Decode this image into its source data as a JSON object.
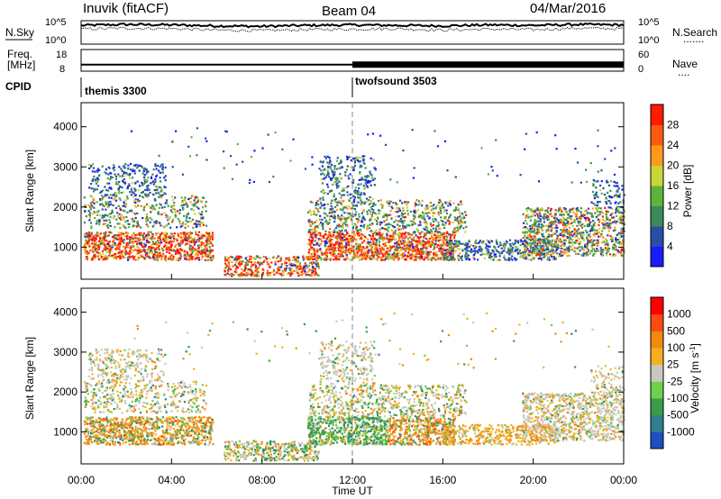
{
  "header": {
    "station": "Inuvik (fitACF)",
    "beam": "Beam 04",
    "date": "04/Mar/2016"
  },
  "chart_data": [
    {
      "type": "line",
      "panel": "noise",
      "ylabel_left": "N.Sky",
      "ylabel_right": "N.Search",
      "legend_sample": ".......",
      "left_ticks": [
        "10^5",
        "10^0"
      ],
      "right_ticks": [
        "10^5",
        "10^0"
      ],
      "y_scale": "log",
      "series": [
        {
          "name": "N.Sky",
          "x": [
            0,
            2,
            4,
            6,
            8,
            10,
            12,
            14,
            16,
            18,
            20,
            22,
            24
          ],
          "y": [
            4.0,
            4.2,
            4.1,
            3.9,
            3.8,
            4.0,
            4.1,
            4.0,
            3.9,
            4.1,
            4.0,
            4.2,
            4.1
          ]
        },
        {
          "name": "N.Search",
          "x": [
            0,
            2,
            4,
            6,
            8,
            10,
            12,
            14,
            16,
            18,
            20,
            22,
            24
          ],
          "y": [
            3.2,
            3.4,
            3.3,
            3.0,
            2.9,
            3.1,
            3.2,
            3.3,
            3.0,
            3.2,
            3.1,
            3.4,
            3.3
          ]
        }
      ]
    },
    {
      "type": "line",
      "panel": "frequency",
      "ylabel_left": "Freq.",
      "ylabel_left_unit": "[MHz]",
      "ylabel_right": "Nave",
      "legend_sample": "....",
      "left_ticks": [
        "18",
        "8"
      ],
      "right_ticks": [
        "60",
        "0"
      ],
      "series": [
        {
          "name": "Freq.",
          "x": [
            0,
            12,
            12,
            24
          ],
          "y": [
            11,
            11,
            11,
            11
          ]
        },
        {
          "name": "Nave",
          "x": [
            0,
            12,
            12,
            24
          ],
          "y": [
            22,
            22,
            18,
            18
          ]
        }
      ]
    },
    {
      "type": "table",
      "panel": "cpid",
      "label": "CPID",
      "segments": [
        {
          "name": "themis 3300",
          "start": 0,
          "end": 12
        },
        {
          "name": "twofsound 3503",
          "start": 12,
          "end": 24
        }
      ]
    },
    {
      "type": "heatmap",
      "panel": "power",
      "ylabel": "Slant Range [km]",
      "yticks": [
        "1000",
        "2000",
        "3000",
        "4000"
      ],
      "ylim": [
        200,
        4600
      ],
      "xlim": [
        0,
        24
      ],
      "colorbar_label": "Power [dB]",
      "colorbar_ticks": [
        "4",
        "8",
        "12",
        "16",
        "20",
        "24",
        "28"
      ],
      "colorbar_range": [
        0,
        30
      ],
      "colors": [
        "#1a1aff",
        "#2a4ea8",
        "#3c8a5c",
        "#5fb33a",
        "#c9d43a",
        "#ff9a1a",
        "#ff5a10",
        "#ff1a00"
      ]
    },
    {
      "type": "heatmap",
      "panel": "velocity",
      "ylabel": "Slant Range [km]",
      "yticks": [
        "1000",
        "2000",
        "3000",
        "4000"
      ],
      "ylim": [
        200,
        4600
      ],
      "xlim": [
        0,
        24
      ],
      "xlabel": "Time UT",
      "xticks": [
        "00:00",
        "04:00",
        "08:00",
        "12:00",
        "16:00",
        "20:00",
        "00:00"
      ],
      "colorbar_label": "Velocity [m s",
      "colorbar_unit_exp": "-1",
      "colorbar_ticks": [
        "1000",
        "500",
        "100",
        "25",
        "-25",
        "-100",
        "-500",
        "-1000"
      ],
      "colors": [
        "#1f4fbf",
        "#2f7f8f",
        "#3a9c4a",
        "#6fd04a",
        "#c8c8c0",
        "#f5b020",
        "#f08a10",
        "#ff4a10",
        "#ff0000"
      ]
    }
  ]
}
